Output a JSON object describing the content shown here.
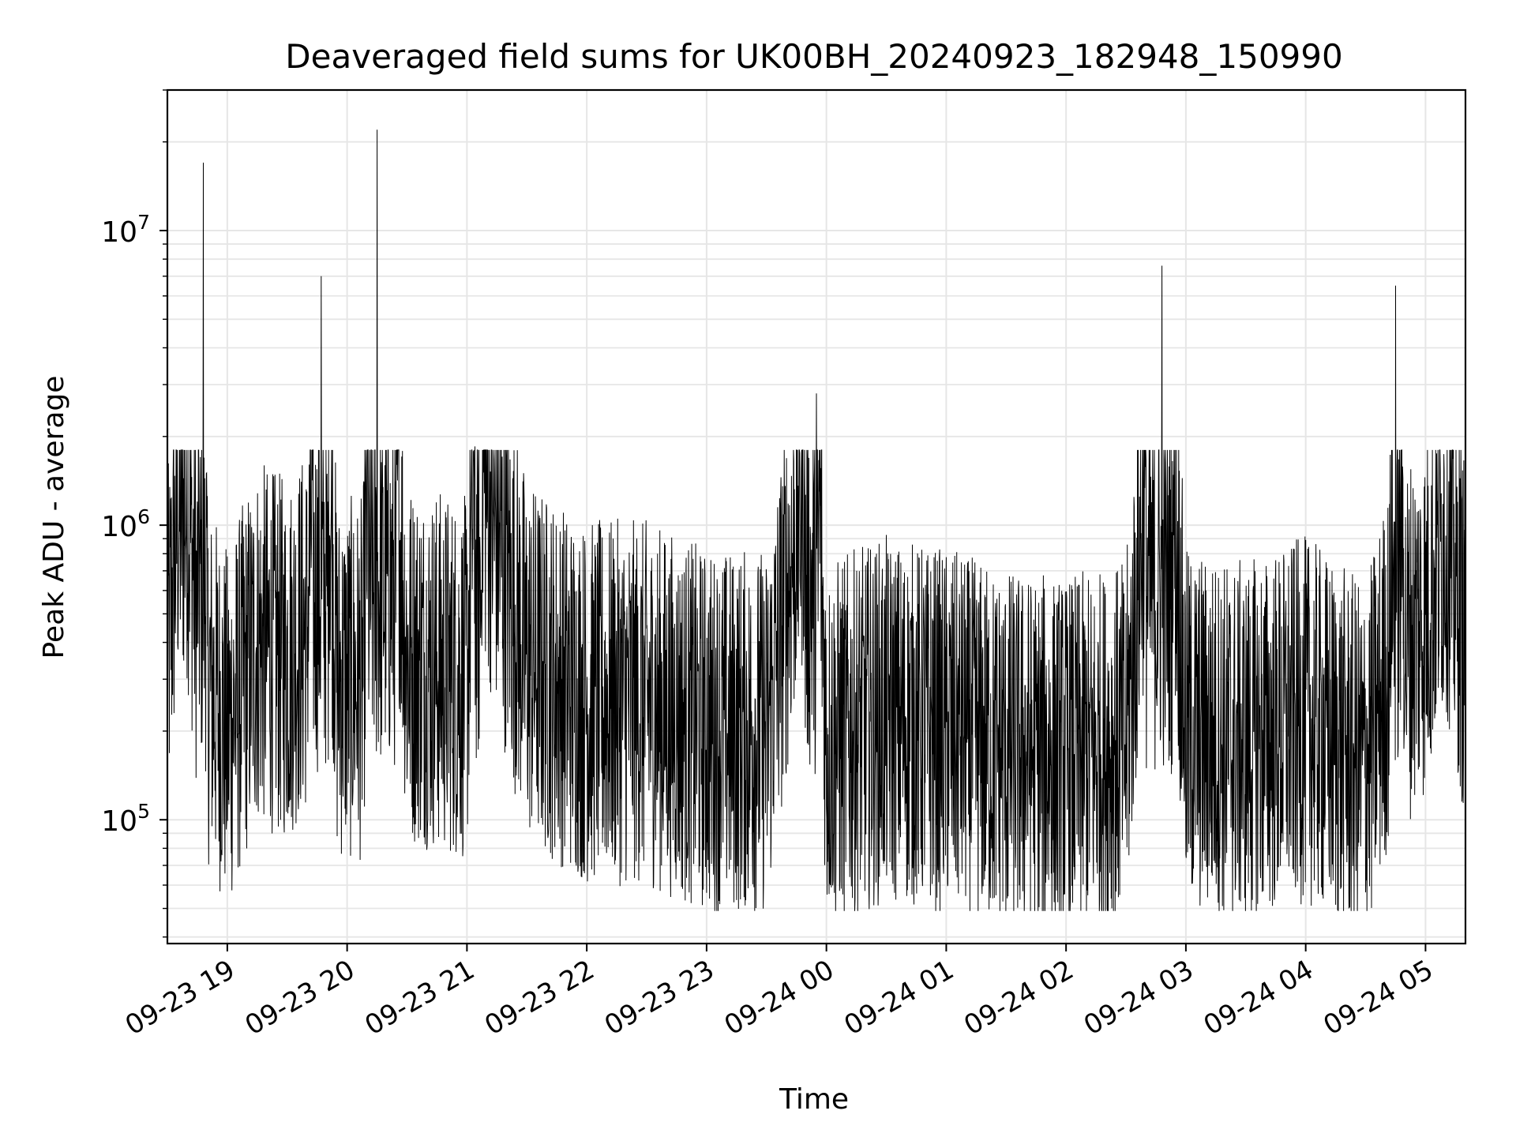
{
  "chart_data": {
    "type": "line",
    "title": "Deaveraged field sums for UK00BH_20240923_182948_150990",
    "xlabel": "Time",
    "ylabel": "Peak ADU - average",
    "yscale": "log",
    "ylim": [
      38000,
      30000000
    ],
    "xlim": [
      "2024-09-23 18:30",
      "2024-09-24 05:20"
    ],
    "grid": true,
    "line_color": "#000000",
    "grid_color": "#e6e6e6",
    "x_ticks": [
      {
        "value": "2024-09-23 19:00",
        "label": "09-23 19"
      },
      {
        "value": "2024-09-23 20:00",
        "label": "09-23 20"
      },
      {
        "value": "2024-09-23 21:00",
        "label": "09-23 21"
      },
      {
        "value": "2024-09-23 22:00",
        "label": "09-23 22"
      },
      {
        "value": "2024-09-23 23:00",
        "label": "09-23 23"
      },
      {
        "value": "2024-09-24 00:00",
        "label": "09-24 00"
      },
      {
        "value": "2024-09-24 01:00",
        "label": "09-24 01"
      },
      {
        "value": "2024-09-24 02:00",
        "label": "09-24 02"
      },
      {
        "value": "2024-09-24 03:00",
        "label": "09-24 03"
      },
      {
        "value": "2024-09-24 04:00",
        "label": "09-24 04"
      },
      {
        "value": "2024-09-24 05:00",
        "label": "09-24 05"
      }
    ],
    "y_ticks": [
      {
        "value": 100000,
        "base": "10",
        "exp": "5"
      },
      {
        "value": 1000000,
        "base": "10",
        "exp": "6"
      },
      {
        "value": 10000000,
        "base": "10",
        "exp": "7"
      }
    ],
    "series": [
      {
        "x": [
          "2024-09-23 18:30",
          "2024-09-23 18:35",
          "2024-09-23 18:40",
          "2024-09-23 18:45",
          "2024-09-23 18:48",
          "2024-09-23 18:50",
          "2024-09-23 18:55",
          "2024-09-23 19:00",
          "2024-09-23 19:15",
          "2024-09-23 19:30",
          "2024-09-23 19:40",
          "2024-09-23 19:47",
          "2024-09-23 19:55",
          "2024-09-23 20:08",
          "2024-09-23 20:15",
          "2024-09-23 20:30",
          "2024-09-23 21:00",
          "2024-09-23 21:04",
          "2024-09-23 21:30",
          "2024-09-23 22:00",
          "2024-09-23 22:30",
          "2024-09-23 23:00",
          "2024-09-23 23:30",
          "2024-09-23 23:55",
          "2024-09-24 00:00",
          "2024-09-24 00:30",
          "2024-09-24 01:00",
          "2024-09-24 01:30",
          "2024-09-24 02:00",
          "2024-09-24 02:30",
          "2024-09-24 02:48",
          "2024-09-24 03:00",
          "2024-09-24 03:30",
          "2024-09-24 04:00",
          "2024-09-24 04:30",
          "2024-09-24 04:42",
          "2024-09-24 04:45",
          "2024-09-24 04:50",
          "2024-09-24 05:00",
          "2024-09-24 05:10",
          "2024-09-24 05:20"
        ],
        "y": [
          350000,
          1000000,
          1200000,
          500000,
          17000000,
          300000,
          250000,
          200000,
          400000,
          350000,
          450000,
          7000000,
          300000,
          300000,
          22000000,
          350000,
          300000,
          1850000,
          350000,
          250000,
          250000,
          200000,
          200000,
          2800000,
          180000,
          220000,
          200000,
          170000,
          160000,
          180000,
          7600000,
          200000,
          180000,
          220000,
          150000,
          350000,
          6500000,
          400000,
          500000,
          1000000,
          400000
        ]
      }
    ]
  }
}
